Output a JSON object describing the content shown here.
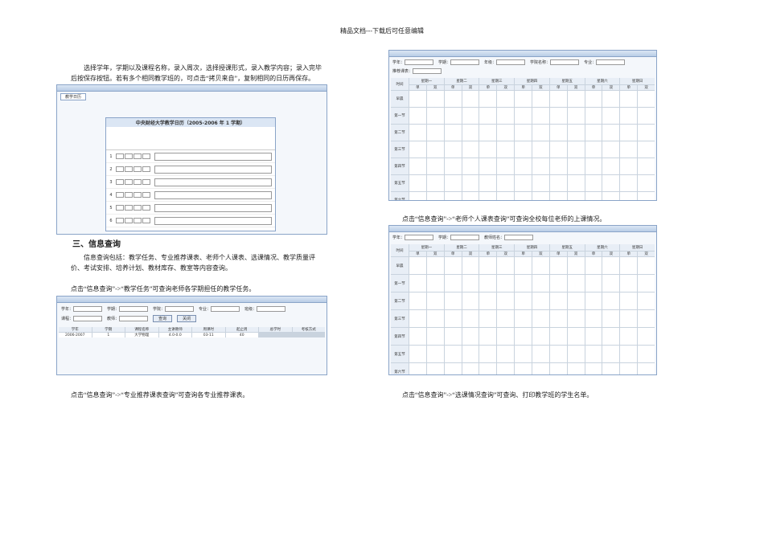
{
  "header": "精品文档---下载后可任意编辑",
  "left": {
    "intro": "选择学年，学期以及课程名称，录入周次，选择授课形式，录入教学内容；录入完毕后按保存按钮。若有多个相同教学班的，可点击“拷贝来自”，复制相同的日历再保存。",
    "heading": "三、信息查询",
    "para": "信息查询包括：教学任务、专业推荐课表、老师个人课表、选课情况、教学质量评价、考试安排、培养计划、教材库存、教室等内容查询。",
    "caption1": "点击“信息查询”->“教学任务”可查询老师各学期担任的教学任务。",
    "caption2": "点击“信息查询”->“专业推荐课表查询”可查询各专业推荐课表。"
  },
  "right": {
    "caption1": "点击“信息查询”->“老师个人课表查询”可查询全校每位老师的上课情况。",
    "caption2": "点击“信息查询”->“选课情况查询”可查询、打印教学班的学生名单。"
  },
  "calendar": {
    "tab": "教学日历",
    "title": "中央财经大学教学日历（2005-2006 年 1 学期）",
    "rows": [
      "1",
      "2",
      "3",
      "4",
      "5",
      "6"
    ]
  },
  "task": {
    "fields": [
      "学年：",
      "学期：",
      "学院：",
      "专业：",
      "班级：",
      "课程：",
      "教师："
    ],
    "buttons": [
      "查询",
      "关闭"
    ],
    "headers": [
      "学年",
      "学期",
      "课程名称",
      "主讲教师",
      "周课时",
      "起止周",
      "总学时",
      "考核方式"
    ],
    "row": [
      "2006-2007",
      "1",
      "大学物理",
      "4.0-0.0",
      "03-11",
      "40"
    ]
  },
  "schedule": {
    "fields3": [
      "学年：",
      "学期：",
      "年级：",
      "学院名称：",
      "专业：",
      "推荐课表："
    ],
    "fields4": [
      "学年：",
      "学期：",
      "教师姓名："
    ],
    "days": [
      "星期一",
      "星期二",
      "星期三",
      "星期四",
      "星期五",
      "星期六",
      "星期日"
    ],
    "halves": [
      "单",
      "双"
    ],
    "corner": "时间",
    "periods": [
      "早晨",
      "第一节",
      "第二节",
      "第三节",
      "第四节",
      "第五节",
      "第六节"
    ]
  }
}
